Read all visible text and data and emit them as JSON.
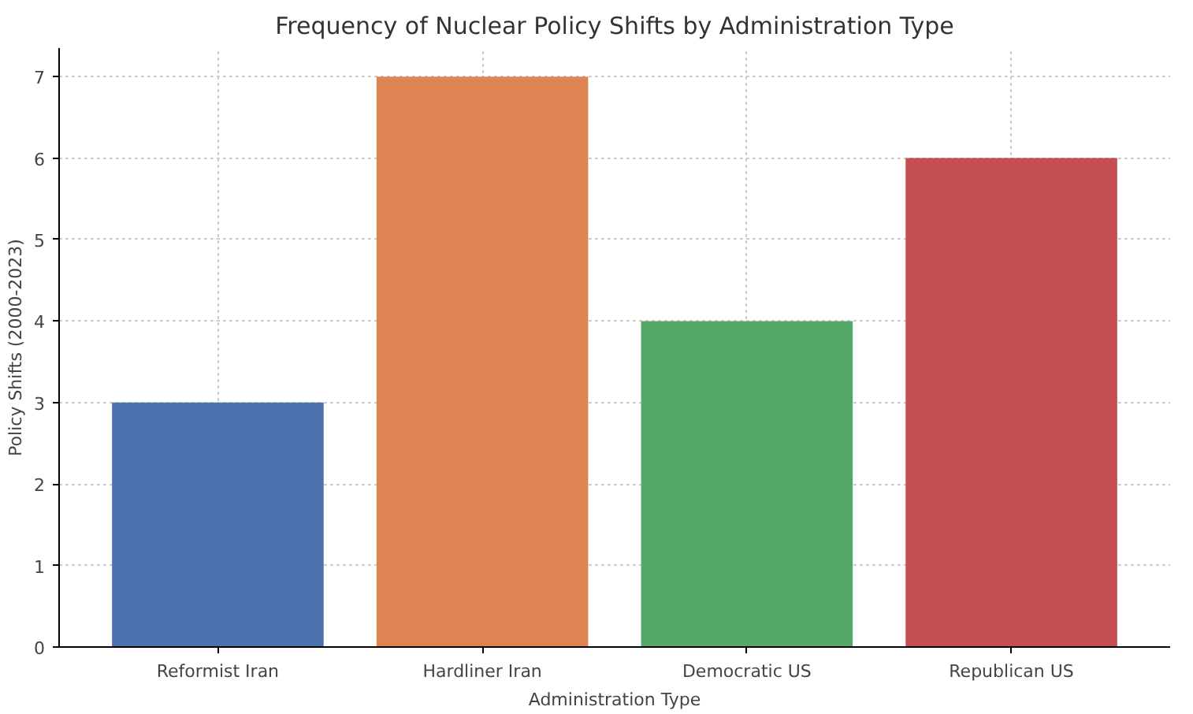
{
  "chart_data": {
    "type": "bar",
    "title": "Frequency of Nuclear Policy Shifts by Administration Type",
    "xlabel": "Administration Type",
    "ylabel": "Policy Shifts (2000-2023)",
    "categories": [
      "Reformist Iran",
      "Hardliner Iran",
      "Democratic US",
      "Republican US"
    ],
    "values": [
      3,
      7,
      4,
      6
    ],
    "colors": [
      "#4c72b0",
      "#dd8452",
      "#55a868",
      "#c44e52"
    ],
    "ylim": [
      0,
      7.35
    ],
    "yticks": [
      0,
      1,
      2,
      3,
      4,
      5,
      6,
      7
    ],
    "grid": true
  }
}
